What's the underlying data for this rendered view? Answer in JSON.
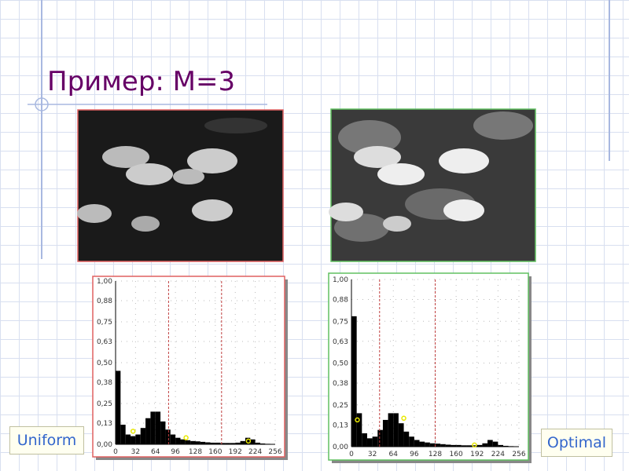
{
  "slide": {
    "title": "Пример: M=3",
    "labels": [
      "Uniform",
      "Optimal"
    ]
  },
  "chart_data": [
    {
      "type": "histogram",
      "frame_color": "#e06060",
      "color": "#000000",
      "grid": true,
      "bins": [
        0,
        8,
        16,
        24,
        32,
        40,
        48,
        56,
        64,
        72,
        80,
        88,
        96,
        104,
        112,
        120,
        128,
        136,
        144,
        152,
        160,
        168,
        176,
        184,
        192,
        200,
        208,
        216,
        224,
        232,
        240,
        248,
        256
      ],
      "counts": [
        0.45,
        0.12,
        0.06,
        0.05,
        0.06,
        0.1,
        0.16,
        0.2,
        0.2,
        0.14,
        0.09,
        0.06,
        0.04,
        0.03,
        0.025,
        0.02,
        0.018,
        0.015,
        0.012,
        0.01,
        0.01,
        0.008,
        0.008,
        0.008,
        0.01,
        0.02,
        0.04,
        0.03,
        0.01,
        0.005,
        0.003,
        0
      ],
      "thresholds": [
        85,
        170
      ],
      "threshold_color": "#c04040",
      "levels": {
        "x": [
          28,
          113,
          213
        ],
        "y": [
          0.08,
          0.04,
          0.02
        ],
        "color": "#e8e800"
      },
      "xlim": [
        0,
        256
      ],
      "ylim": [
        0,
        1
      ],
      "xticks": [
        0,
        32,
        64,
        96,
        128,
        160,
        192,
        224,
        256
      ],
      "yticks": [
        {
          "value": 0,
          "label": "0,00"
        },
        {
          "value": 0.13,
          "label": "0,13"
        },
        {
          "value": 0.25,
          "label": "0,25"
        },
        {
          "value": 0.38,
          "label": "0,38"
        },
        {
          "value": 0.5,
          "label": "0,50"
        },
        {
          "value": 0.63,
          "label": "0,63"
        },
        {
          "value": 0.75,
          "label": "0,75"
        },
        {
          "value": 0.88,
          "label": "0,88"
        },
        {
          "value": 1,
          "label": "1,00"
        }
      ]
    },
    {
      "type": "histogram",
      "frame_color": "#60c060",
      "color": "#000000",
      "grid": true,
      "bins": [
        0,
        8,
        16,
        24,
        32,
        40,
        48,
        56,
        64,
        72,
        80,
        88,
        96,
        104,
        112,
        120,
        128,
        136,
        144,
        152,
        160,
        168,
        176,
        184,
        192,
        200,
        208,
        216,
        224,
        232,
        240,
        248,
        256
      ],
      "counts": [
        0.78,
        0.2,
        0.08,
        0.05,
        0.06,
        0.1,
        0.16,
        0.2,
        0.2,
        0.14,
        0.09,
        0.06,
        0.04,
        0.03,
        0.025,
        0.02,
        0.018,
        0.015,
        0.012,
        0.01,
        0.01,
        0.008,
        0.008,
        0.008,
        0.01,
        0.02,
        0.04,
        0.03,
        0.01,
        0.005,
        0.003,
        0
      ],
      "thresholds": [
        43,
        128
      ],
      "threshold_color": "#c04040",
      "levels": {
        "x": [
          9,
          80,
          188
        ],
        "y": [
          0.16,
          0.17,
          0.01
        ],
        "color": "#e8e800"
      },
      "xlim": [
        0,
        256
      ],
      "ylim": [
        0,
        1
      ],
      "xticks": [
        0,
        32,
        64,
        96,
        128,
        160,
        192,
        224,
        256
      ],
      "yticks": [
        {
          "value": 0,
          "label": "0,00"
        },
        {
          "value": 0.13,
          "label": "0,13"
        },
        {
          "value": 0.25,
          "label": "0,25"
        },
        {
          "value": 0.38,
          "label": "0,38"
        },
        {
          "value": 0.5,
          "label": "0,50"
        },
        {
          "value": 0.63,
          "label": "0,63"
        },
        {
          "value": 0.75,
          "label": "0,75"
        },
        {
          "value": 0.88,
          "label": "0,88"
        },
        {
          "value": 1,
          "label": "1,00"
        }
      ]
    }
  ]
}
